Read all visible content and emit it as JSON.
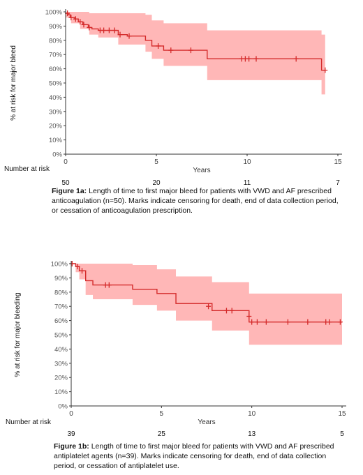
{
  "chart_data": [
    {
      "type": "line",
      "subtype": "kaplan-meier",
      "xlabel": "Years",
      "ylabel": "% at risk for major bleed",
      "xlim": [
        0,
        15
      ],
      "ylim": [
        0,
        100
      ],
      "x_ticks": [
        "0",
        "5",
        "10",
        "15"
      ],
      "y_ticks": [
        "0%",
        "10%",
        "20%",
        "30%",
        "40%",
        "50%",
        "60%",
        "70%",
        "80%",
        "90%",
        "100%"
      ],
      "grid": false,
      "colors": {
        "line": "#d42a2a",
        "band": "#ffb3b3"
      },
      "step": [
        [
          0,
          99
        ],
        [
          0.15,
          98
        ],
        [
          0.25,
          96
        ],
        [
          0.5,
          95
        ],
        [
          0.7,
          93
        ],
        [
          0.95,
          91
        ],
        [
          1.25,
          89
        ],
        [
          1.45,
          88
        ],
        [
          1.8,
          87
        ],
        [
          2.9,
          84
        ],
        [
          3.4,
          83
        ],
        [
          4.4,
          80
        ],
        [
          4.75,
          76
        ],
        [
          5.4,
          73
        ],
        [
          7.8,
          67
        ],
        [
          14.1,
          59
        ],
        [
          14.3,
          59
        ]
      ],
      "ci_upper": [
        [
          0,
          100
        ],
        [
          1,
          100
        ],
        [
          1.3,
          99
        ],
        [
          4.4,
          98
        ],
        [
          4.75,
          94
        ],
        [
          5.4,
          92
        ],
        [
          7.8,
          87
        ],
        [
          14.1,
          84
        ],
        [
          14.3,
          84
        ]
      ],
      "ci_lower": [
        [
          0,
          96
        ],
        [
          0.3,
          92
        ],
        [
          0.8,
          88
        ],
        [
          1.3,
          84
        ],
        [
          1.8,
          82
        ],
        [
          2.9,
          77
        ],
        [
          4.4,
          72
        ],
        [
          4.75,
          67
        ],
        [
          5.4,
          62
        ],
        [
          7.8,
          52
        ],
        [
          14.1,
          42
        ],
        [
          14.3,
          42
        ]
      ],
      "censor_marks": [
        [
          0.1,
          99
        ],
        [
          0.3,
          96
        ],
        [
          0.55,
          95
        ],
        [
          0.8,
          93
        ],
        [
          1.0,
          91
        ],
        [
          1.3,
          89
        ],
        [
          1.9,
          87
        ],
        [
          2.1,
          87
        ],
        [
          2.4,
          87
        ],
        [
          2.7,
          87
        ],
        [
          3.0,
          84
        ],
        [
          3.5,
          83
        ],
        [
          5.1,
          76
        ],
        [
          5.8,
          73
        ],
        [
          6.9,
          73
        ],
        [
          9.7,
          67
        ],
        [
          9.9,
          67
        ],
        [
          10.1,
          67
        ],
        [
          10.5,
          67
        ],
        [
          12.7,
          67
        ],
        [
          14.3,
          59
        ]
      ],
      "risk_table": {
        "label": "Number at risk",
        "values": [
          "50",
          "20",
          "11",
          "7"
        ]
      },
      "caption": {
        "label": "Figure 1a:",
        "text": "Length of time to first major bleed for patients with VWD and AF prescribed anticoagulation (n=50). Marks indicate censoring for death, end of data collection period, or cessation of anticoagulation prescription."
      }
    },
    {
      "type": "line",
      "subtype": "kaplan-meier",
      "xlabel": "Years",
      "ylabel": "% at risk for major bleeding",
      "xlim": [
        0,
        15
      ],
      "ylim": [
        0,
        100
      ],
      "x_ticks": [
        "0",
        "5",
        "10",
        "15"
      ],
      "y_ticks": [
        "0%",
        "10%",
        "20%",
        "30%",
        "40%",
        "50%",
        "60%",
        "70%",
        "80%",
        "90%",
        "100%"
      ],
      "grid": false,
      "colors": {
        "line": "#d42a2a",
        "band": "#ffb3b3"
      },
      "step": [
        [
          0,
          100
        ],
        [
          0.25,
          98
        ],
        [
          0.45,
          95
        ],
        [
          0.8,
          88
        ],
        [
          1.2,
          85
        ],
        [
          3.4,
          82
        ],
        [
          4.75,
          79
        ],
        [
          5.8,
          72
        ],
        [
          7.8,
          67
        ],
        [
          9.85,
          59
        ],
        [
          15,
          59
        ]
      ],
      "ci_upper": [
        [
          0,
          100
        ],
        [
          3.4,
          99
        ],
        [
          4.75,
          96
        ],
        [
          5.8,
          91
        ],
        [
          7.8,
          87
        ],
        [
          9.85,
          79
        ],
        [
          15,
          79
        ]
      ],
      "ci_lower": [
        [
          0,
          100
        ],
        [
          0.25,
          94
        ],
        [
          0.45,
          89
        ],
        [
          0.8,
          78
        ],
        [
          1.2,
          75
        ],
        [
          3.4,
          71
        ],
        [
          4.75,
          67
        ],
        [
          5.8,
          60
        ],
        [
          7.8,
          53
        ],
        [
          9.85,
          43
        ],
        [
          15,
          43
        ]
      ],
      "censor_marks": [
        [
          0.05,
          100
        ],
        [
          0.35,
          98
        ],
        [
          0.6,
          95
        ],
        [
          1.9,
          85
        ],
        [
          2.1,
          85
        ],
        [
          7.6,
          70
        ],
        [
          8.6,
          67
        ],
        [
          8.9,
          67
        ],
        [
          9.85,
          63
        ],
        [
          10.0,
          59
        ],
        [
          10.3,
          59
        ],
        [
          10.8,
          59
        ],
        [
          12.0,
          59
        ],
        [
          13.1,
          59
        ],
        [
          14.1,
          59
        ],
        [
          14.3,
          59
        ],
        [
          14.9,
          59
        ]
      ],
      "risk_table": {
        "label": "Number at risk",
        "values": [
          "39",
          "25",
          "13",
          "5"
        ]
      },
      "caption": {
        "label": "Figure 1b:",
        "text": "Length of time to first major bleed for patients with VWD and AF prescribed antiplatelet agents (n=39). Marks indicate censoring for death, end of data collection period, or cessation of antiplatelet use."
      }
    }
  ]
}
